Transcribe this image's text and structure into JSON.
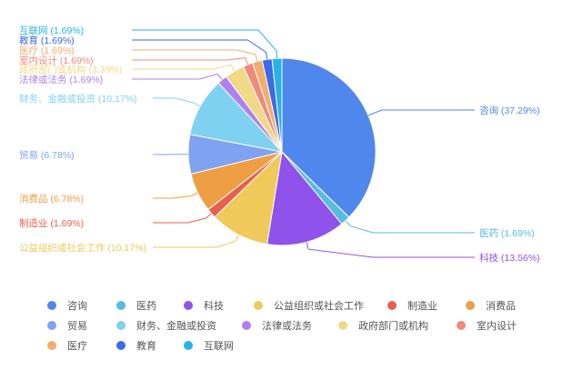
{
  "chart_data": {
    "type": "pie",
    "categories": [
      "咨询",
      "医药",
      "科技",
      "公益组织或社会工作",
      "制造业",
      "消费品",
      "贸易",
      "财务、金融或投资",
      "法律或法务",
      "政府部门或机构",
      "室内设计",
      "医疗",
      "教育",
      "互联网"
    ],
    "values": [
      37.29,
      1.69,
      13.56,
      10.17,
      1.69,
      6.78,
      6.78,
      10.17,
      1.69,
      3.39,
      1.69,
      1.69,
      1.69,
      1.69
    ],
    "labels": [
      "咨询 (37.29%)",
      "医药 (1.69%)",
      "科技 (13.56%)",
      "公益组织或社会工作 (10.17%)",
      "制造业 (1.69%)",
      "消费品 (6.78%)",
      "贸易 (6.78%)",
      "财务、金融或投资 (10.17%)",
      "法律或法务 (1.69%)",
      "政府部门或机构 (3.39%)",
      "室内设计 (1.69%)",
      "医疗 (1.69%)",
      "教育 (1.69%)",
      "互联网 (1.69%)"
    ],
    "colors": [
      "#5087ec",
      "#58bbe2",
      "#8f52eb",
      "#efc95a",
      "#e8604c",
      "#ef9f43",
      "#7fa2f1",
      "#7fd1f1",
      "#b080f2",
      "#f0d987",
      "#f08a7c",
      "#f2ae6d",
      "#3d6be2",
      "#27b3ea"
    ],
    "legend_position": "bottom"
  }
}
